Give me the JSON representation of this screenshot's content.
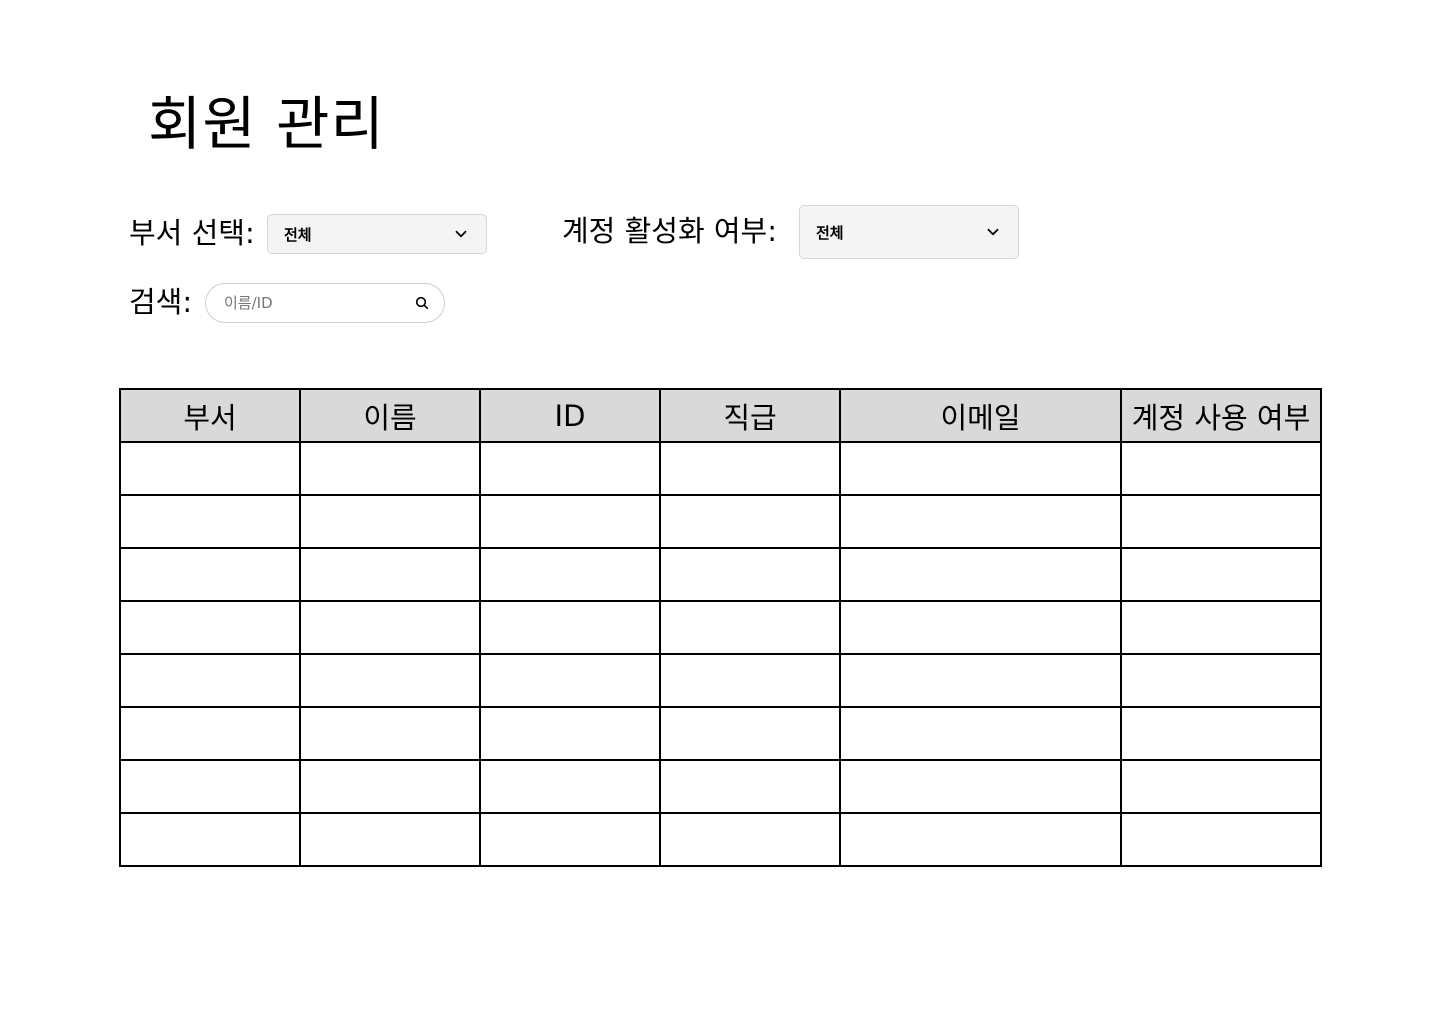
{
  "page_title": "회원 관리",
  "filters": {
    "department_label": "부서 선택:",
    "department_value": "전체",
    "account_status_label": "계정 활성화 여부:",
    "account_status_value": "전체",
    "search_label": "검색:",
    "search_placeholder": "이름/ID",
    "search_value": ""
  },
  "table": {
    "headers": [
      "부서",
      "이름",
      "ID",
      "직급",
      "이메일",
      "계정 사용 여부"
    ],
    "rows": [
      [
        "",
        "",
        "",
        "",
        "",
        ""
      ],
      [
        "",
        "",
        "",
        "",
        "",
        ""
      ],
      [
        "",
        "",
        "",
        "",
        "",
        ""
      ],
      [
        "",
        "",
        "",
        "",
        "",
        ""
      ],
      [
        "",
        "",
        "",
        "",
        "",
        ""
      ],
      [
        "",
        "",
        "",
        "",
        "",
        ""
      ],
      [
        "",
        "",
        "",
        "",
        "",
        ""
      ],
      [
        "",
        "",
        "",
        "",
        "",
        ""
      ]
    ]
  }
}
